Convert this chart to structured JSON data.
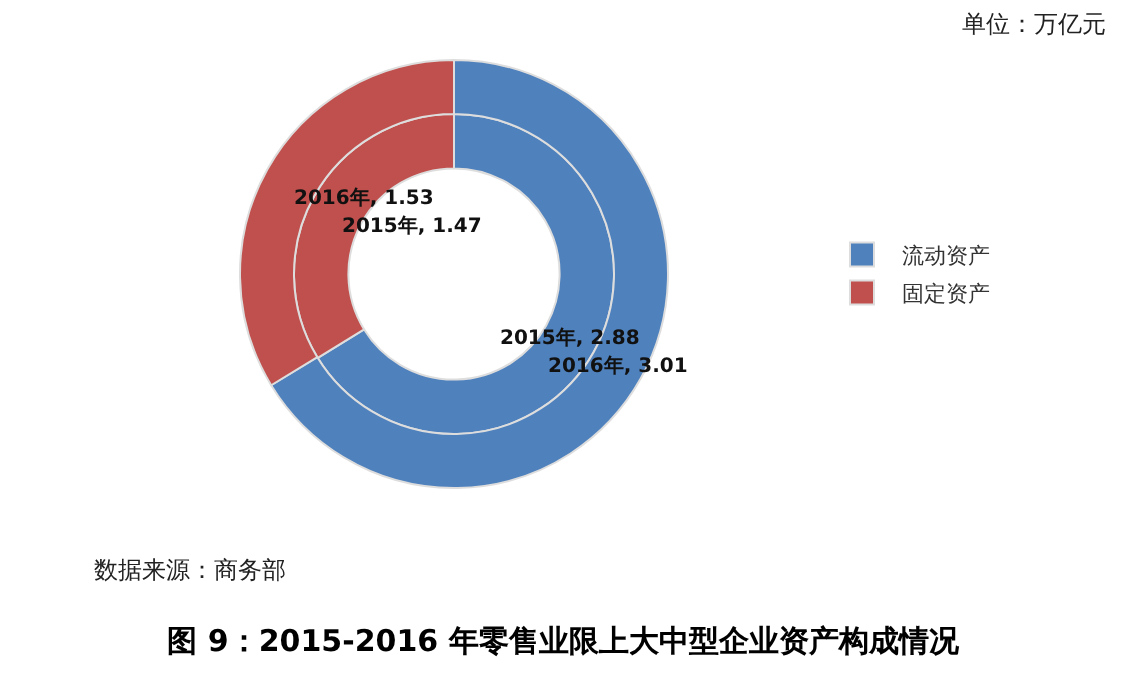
{
  "chart_data": {
    "type": "donut",
    "title": "图 9：2015-2016 年零售业限上大中型企业资产构成情况",
    "categories": [
      "流动资产",
      "固定资产"
    ],
    "colors": [
      "#4f81bd",
      "#c0504d"
    ],
    "series": [
      {
        "values": [
          2.88,
          1.47
        ],
        "value_labels": [
          "2015年, 2.88",
          "2015年, 1.47"
        ]
      },
      {
        "values": [
          3.01,
          1.53
        ],
        "value_labels": [
          "2016年, 3.01",
          "2016年, 1.53"
        ]
      }
    ],
    "legend": "right",
    "annotations": [
      "单位：万亿元",
      "数据来源：商务部"
    ]
  }
}
